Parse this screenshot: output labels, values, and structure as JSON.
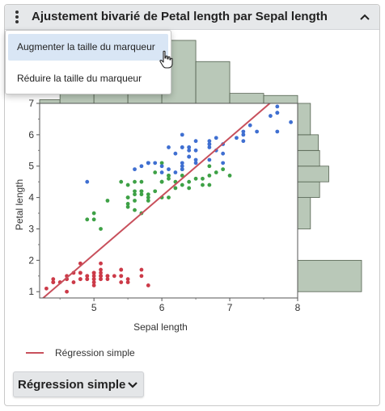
{
  "header": {
    "title": "Ajustement bivarié de Petal length par Sepal length"
  },
  "menu": {
    "items": [
      {
        "label": "Augmenter la taille du marqueur",
        "active": true
      },
      {
        "label": "Réduire la taille du marqueur",
        "active": false
      }
    ]
  },
  "legend": {
    "label": "Régression simple",
    "color": "#c8505c"
  },
  "fit_button": {
    "label": "Régression simple"
  },
  "colors": {
    "setosa": "#cc3a48",
    "versicolor": "#3ea146",
    "virginica": "#3f6fd1",
    "histogram_fill": "#b9c8b8",
    "histogram_stroke": "#53614f",
    "regression_line": "#c8505c"
  },
  "chart_data": {
    "type": "scatter",
    "title": "",
    "xlabel": "Sepal length",
    "ylabel": "Petal length",
    "xlim": [
      4.2,
      8.0
    ],
    "ylim": [
      0.8,
      7.0
    ],
    "xticks": [
      5,
      6,
      7,
      8
    ],
    "yticks": [
      1,
      2,
      3,
      4,
      5,
      6,
      7
    ],
    "grid": false,
    "legend_position": "bottom-left",
    "regression": {
      "name": "Régression simple",
      "slope": 1.858,
      "intercept": -7.101
    },
    "series": [
      {
        "color_key": "setosa",
        "points": [
          [
            5.1,
            1.4
          ],
          [
            4.9,
            1.4
          ],
          [
            4.7,
            1.3
          ],
          [
            4.6,
            1.5
          ],
          [
            5.0,
            1.4
          ],
          [
            5.4,
            1.7
          ],
          [
            4.6,
            1.4
          ],
          [
            5.0,
            1.5
          ],
          [
            4.4,
            1.4
          ],
          [
            4.9,
            1.5
          ],
          [
            5.4,
            1.5
          ],
          [
            4.8,
            1.6
          ],
          [
            4.8,
            1.4
          ],
          [
            4.3,
            1.1
          ],
          [
            5.8,
            1.2
          ],
          [
            5.7,
            1.5
          ],
          [
            5.4,
            1.3
          ],
          [
            5.1,
            1.4
          ],
          [
            5.7,
            1.7
          ],
          [
            5.1,
            1.5
          ],
          [
            5.4,
            1.7
          ],
          [
            5.1,
            1.5
          ],
          [
            4.6,
            1.0
          ],
          [
            5.1,
            1.7
          ],
          [
            4.8,
            1.9
          ],
          [
            5.0,
            1.6
          ],
          [
            5.0,
            1.6
          ],
          [
            5.2,
            1.5
          ],
          [
            5.2,
            1.4
          ],
          [
            4.7,
            1.6
          ],
          [
            4.8,
            1.6
          ],
          [
            5.4,
            1.5
          ],
          [
            5.2,
            1.5
          ],
          [
            5.5,
            1.4
          ],
          [
            4.9,
            1.5
          ],
          [
            5.0,
            1.2
          ],
          [
            5.5,
            1.3
          ],
          [
            4.9,
            1.4
          ],
          [
            4.4,
            1.3
          ],
          [
            5.1,
            1.5
          ],
          [
            5.0,
            1.3
          ],
          [
            4.5,
            1.3
          ],
          [
            4.4,
            1.3
          ],
          [
            5.0,
            1.6
          ],
          [
            5.1,
            1.9
          ],
          [
            4.8,
            1.4
          ],
          [
            5.1,
            1.6
          ],
          [
            4.6,
            1.4
          ],
          [
            5.3,
            1.5
          ],
          [
            5.0,
            1.4
          ]
        ]
      },
      {
        "color_key": "versicolor",
        "points": [
          [
            7.0,
            4.7
          ],
          [
            6.4,
            4.5
          ],
          [
            6.9,
            4.9
          ],
          [
            5.5,
            4.0
          ],
          [
            6.5,
            4.6
          ],
          [
            5.7,
            4.5
          ],
          [
            6.3,
            4.7
          ],
          [
            4.9,
            3.3
          ],
          [
            6.6,
            4.6
          ],
          [
            5.2,
            3.9
          ],
          [
            5.0,
            3.5
          ],
          [
            5.9,
            4.2
          ],
          [
            6.0,
            4.0
          ],
          [
            6.1,
            4.7
          ],
          [
            5.6,
            3.6
          ],
          [
            6.7,
            4.4
          ],
          [
            5.6,
            4.5
          ],
          [
            5.8,
            4.1
          ],
          [
            6.2,
            4.5
          ],
          [
            5.6,
            3.9
          ],
          [
            5.9,
            4.8
          ],
          [
            6.1,
            4.0
          ],
          [
            6.3,
            4.9
          ],
          [
            6.1,
            4.7
          ],
          [
            6.4,
            4.3
          ],
          [
            6.6,
            4.4
          ],
          [
            6.8,
            4.8
          ],
          [
            6.7,
            5.0
          ],
          [
            6.0,
            4.5
          ],
          [
            5.7,
            3.5
          ],
          [
            5.5,
            3.8
          ],
          [
            5.5,
            3.7
          ],
          [
            5.8,
            3.9
          ],
          [
            6.0,
            5.1
          ],
          [
            5.4,
            4.5
          ],
          [
            6.0,
            4.5
          ],
          [
            6.7,
            4.7
          ],
          [
            6.3,
            4.4
          ],
          [
            5.6,
            4.1
          ],
          [
            5.5,
            4.0
          ],
          [
            5.5,
            4.4
          ],
          [
            6.1,
            4.6
          ],
          [
            5.8,
            4.0
          ],
          [
            5.0,
            3.3
          ],
          [
            5.6,
            4.2
          ],
          [
            5.7,
            4.2
          ],
          [
            5.7,
            4.2
          ],
          [
            6.2,
            4.3
          ],
          [
            5.1,
            3.0
          ],
          [
            5.7,
            4.1
          ]
        ]
      },
      {
        "color_key": "virginica",
        "points": [
          [
            6.3,
            6.0
          ],
          [
            5.8,
            5.1
          ],
          [
            7.1,
            5.9
          ],
          [
            6.3,
            5.6
          ],
          [
            6.5,
            5.8
          ],
          [
            7.6,
            6.6
          ],
          [
            4.9,
            4.5
          ],
          [
            7.3,
            6.3
          ],
          [
            6.7,
            5.8
          ],
          [
            7.2,
            6.1
          ],
          [
            6.5,
            5.1
          ],
          [
            6.4,
            5.3
          ],
          [
            6.8,
            5.5
          ],
          [
            5.7,
            5.0
          ],
          [
            5.8,
            5.1
          ],
          [
            6.4,
            5.3
          ],
          [
            6.5,
            5.5
          ],
          [
            7.7,
            6.7
          ],
          [
            7.7,
            6.9
          ],
          [
            6.0,
            5.0
          ],
          [
            6.9,
            5.7
          ],
          [
            5.6,
            4.9
          ],
          [
            7.7,
            6.7
          ],
          [
            6.3,
            4.9
          ],
          [
            6.7,
            5.7
          ],
          [
            7.2,
            6.0
          ],
          [
            6.2,
            4.8
          ],
          [
            6.1,
            4.9
          ],
          [
            6.4,
            5.6
          ],
          [
            7.2,
            5.8
          ],
          [
            7.4,
            6.1
          ],
          [
            7.9,
            6.4
          ],
          [
            6.4,
            5.6
          ],
          [
            6.3,
            5.1
          ],
          [
            6.1,
            5.6
          ],
          [
            7.7,
            6.1
          ],
          [
            6.3,
            5.6
          ],
          [
            6.4,
            5.5
          ],
          [
            6.0,
            4.8
          ],
          [
            6.9,
            5.4
          ],
          [
            6.7,
            5.6
          ],
          [
            6.9,
            5.1
          ],
          [
            5.8,
            5.1
          ],
          [
            6.8,
            5.9
          ],
          [
            6.7,
            5.7
          ],
          [
            6.7,
            5.2
          ],
          [
            6.3,
            5.0
          ],
          [
            6.5,
            5.2
          ],
          [
            6.2,
            5.4
          ],
          [
            5.9,
            5.1
          ]
        ]
      }
    ]
  }
}
